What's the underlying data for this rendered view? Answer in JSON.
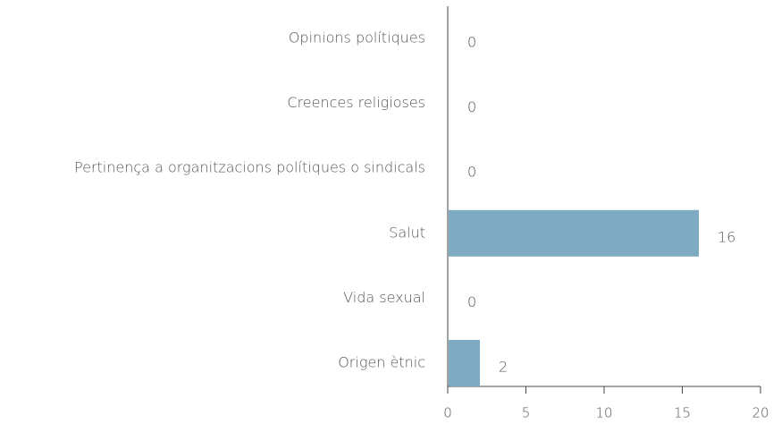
{
  "chart_data": {
    "type": "hbar",
    "categories": [
      "Opinions polítiques",
      "Creences religioses",
      "Pertinença a organitzacions polítiques o sindicals",
      "Salut",
      "Vida sexual",
      "Origen ètnic"
    ],
    "values": [
      0,
      0,
      0,
      16,
      0,
      2
    ],
    "color": "#7eabc2",
    "xlim": [
      0,
      20
    ],
    "xticks": [
      0,
      5,
      10,
      15,
      20
    ],
    "grid": false
  }
}
